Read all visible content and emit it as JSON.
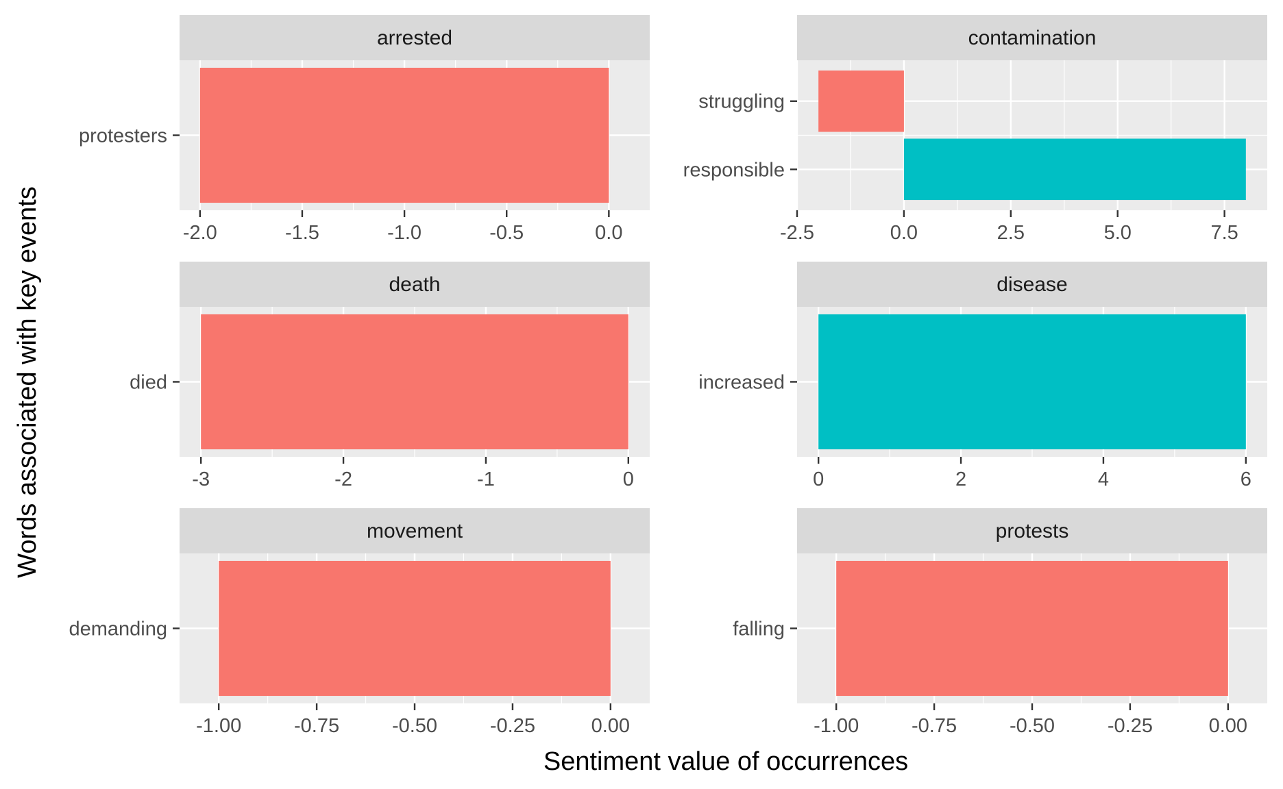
{
  "chart_data": {
    "type": "bar",
    "orientation": "horizontal",
    "xlabel": "Sentiment value of occurrences",
    "ylabel": "Words associated with key events",
    "colors": {
      "negative": "#F8766D",
      "positive": "#00BFC4",
      "panel_bg": "#EBEBEB",
      "strip_bg": "#D9D9D9",
      "grid": "#FFFFFF"
    },
    "facets": [
      {
        "title": "arrested",
        "xlim": [
          -2.1,
          0.2
        ],
        "ticks": [
          -2.0,
          -1.5,
          -1.0,
          -0.5,
          0.0
        ],
        "tick_labels": [
          "-2.0",
          "-1.5",
          "-1.0",
          "-0.5",
          "0.0"
        ],
        "categories": [
          "protesters"
        ],
        "values": [
          -2
        ]
      },
      {
        "title": "contamination",
        "xlim": [
          -2.5,
          8.5
        ],
        "ticks": [
          -2.5,
          0.0,
          2.5,
          5.0,
          7.5
        ],
        "tick_labels": [
          "-2.5",
          "0.0",
          "2.5",
          "5.0",
          "7.5"
        ],
        "categories": [
          "responsible",
          "struggling"
        ],
        "values": [
          8,
          -2
        ]
      },
      {
        "title": "death",
        "xlim": [
          -3.15,
          0.15
        ],
        "ticks": [
          -3,
          -2,
          -1,
          0
        ],
        "tick_labels": [
          "-3",
          "-2",
          "-1",
          "0"
        ],
        "categories": [
          "died"
        ],
        "values": [
          -3
        ]
      },
      {
        "title": "disease",
        "xlim": [
          -0.3,
          6.3
        ],
        "ticks": [
          0,
          2,
          4,
          6
        ],
        "tick_labels": [
          "0",
          "2",
          "4",
          "6"
        ],
        "categories": [
          "increased"
        ],
        "values": [
          6
        ]
      },
      {
        "title": "movement",
        "xlim": [
          -1.1,
          0.1
        ],
        "ticks": [
          -1.0,
          -0.75,
          -0.5,
          -0.25,
          0.0
        ],
        "tick_labels": [
          "-1.00",
          "-0.75",
          "-0.50",
          "-0.25",
          "0.00"
        ],
        "categories": [
          "demanding"
        ],
        "values": [
          -1
        ]
      },
      {
        "title": "protests",
        "xlim": [
          -1.1,
          0.1
        ],
        "ticks": [
          -1.0,
          -0.75,
          -0.5,
          -0.25,
          0.0
        ],
        "tick_labels": [
          "-1.00",
          "-0.75",
          "-0.50",
          "-0.25",
          "0.00"
        ],
        "categories": [
          "falling"
        ],
        "values": [
          -1
        ]
      }
    ]
  }
}
